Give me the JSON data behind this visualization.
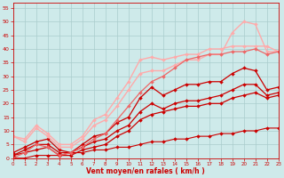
{
  "title": "",
  "xlabel": "Vent moyen/en rafales ( km/h )",
  "ylabel": "",
  "background_color": "#ceeaea",
  "grid_color": "#aacccc",
  "xlim": [
    0,
    23
  ],
  "ylim": [
    0,
    57
  ],
  "yticks": [
    0,
    5,
    10,
    15,
    20,
    25,
    30,
    35,
    40,
    45,
    50,
    55
  ],
  "xticks": [
    0,
    1,
    2,
    3,
    4,
    5,
    6,
    7,
    8,
    9,
    10,
    11,
    12,
    13,
    14,
    15,
    16,
    17,
    18,
    19,
    20,
    21,
    22,
    23
  ],
  "series": [
    {
      "x": [
        0,
        1,
        2,
        3,
        4,
        5,
        6,
        7,
        8,
        9,
        10,
        11,
        12,
        13,
        14,
        15,
        16,
        17,
        18,
        19,
        20,
        21,
        22,
        23
      ],
      "y": [
        0,
        0,
        1,
        1,
        1,
        2,
        2,
        3,
        3,
        4,
        4,
        5,
        6,
        6,
        7,
        7,
        8,
        8,
        9,
        9,
        10,
        10,
        11,
        11
      ],
      "color": "#cc0000",
      "lw": 0.8
    },
    {
      "x": [
        0,
        1,
        2,
        3,
        4,
        5,
        6,
        7,
        8,
        9,
        10,
        11,
        12,
        13,
        14,
        15,
        16,
        17,
        18,
        19,
        20,
        21,
        22,
        23
      ],
      "y": [
        1,
        2,
        3,
        4,
        1,
        1,
        3,
        4,
        5,
        8,
        10,
        14,
        16,
        17,
        18,
        19,
        19,
        20,
        20,
        22,
        23,
        24,
        22,
        23
      ],
      "color": "#cc0000",
      "lw": 0.9
    },
    {
      "x": [
        0,
        1,
        2,
        3,
        4,
        5,
        6,
        7,
        8,
        9,
        10,
        11,
        12,
        13,
        14,
        15,
        16,
        17,
        18,
        19,
        20,
        21,
        22,
        23
      ],
      "y": [
        1,
        3,
        5,
        5,
        2,
        2,
        4,
        6,
        7,
        10,
        12,
        17,
        20,
        18,
        20,
        21,
        21,
        22,
        23,
        25,
        27,
        27,
        23,
        24
      ],
      "color": "#cc0000",
      "lw": 0.9
    },
    {
      "x": [
        0,
        1,
        2,
        3,
        4,
        5,
        6,
        7,
        8,
        9,
        10,
        11,
        12,
        13,
        14,
        15,
        16,
        17,
        18,
        19,
        20,
        21,
        22,
        23
      ],
      "y": [
        2,
        4,
        6,
        7,
        3,
        2,
        5,
        8,
        9,
        13,
        15,
        22,
        26,
        23,
        25,
        27,
        27,
        28,
        28,
        31,
        33,
        32,
        25,
        26
      ],
      "color": "#cc0000",
      "lw": 0.9
    },
    {
      "x": [
        0,
        1,
        2,
        3,
        4,
        5,
        6,
        7,
        8,
        9,
        10,
        11,
        12,
        13,
        14,
        15,
        16,
        17,
        18,
        19,
        20,
        21,
        22,
        23
      ],
      "y": [
        8,
        7,
        12,
        9,
        5,
        5,
        8,
        14,
        16,
        22,
        28,
        36,
        37,
        36,
        37,
        38,
        38,
        40,
        40,
        41,
        41,
        41,
        41,
        39
      ],
      "color": "#ffaaaa",
      "lw": 1.0
    },
    {
      "x": [
        0,
        1,
        2,
        3,
        4,
        5,
        6,
        7,
        8,
        9,
        10,
        11,
        12,
        13,
        14,
        15,
        16,
        17,
        18,
        19,
        20,
        21,
        22,
        23
      ],
      "y": [
        8,
        6,
        11,
        8,
        4,
        4,
        7,
        12,
        14,
        19,
        25,
        31,
        32,
        32,
        34,
        36,
        36,
        38,
        38,
        46,
        50,
        49,
        39,
        39
      ],
      "color": "#ffaaaa",
      "lw": 1.0
    },
    {
      "x": [
        0,
        1,
        2,
        3,
        4,
        5,
        6,
        7,
        8,
        9,
        10,
        11,
        12,
        13,
        14,
        15,
        16,
        17,
        18,
        19,
        20,
        21,
        22,
        23
      ],
      "y": [
        0,
        2,
        5,
        4,
        1,
        2,
        4,
        7,
        9,
        14,
        19,
        24,
        28,
        30,
        33,
        36,
        37,
        38,
        38,
        39,
        39,
        40,
        38,
        39
      ],
      "color": "#ee6666",
      "lw": 0.9
    }
  ],
  "marker": "D",
  "markersize": 2.0
}
